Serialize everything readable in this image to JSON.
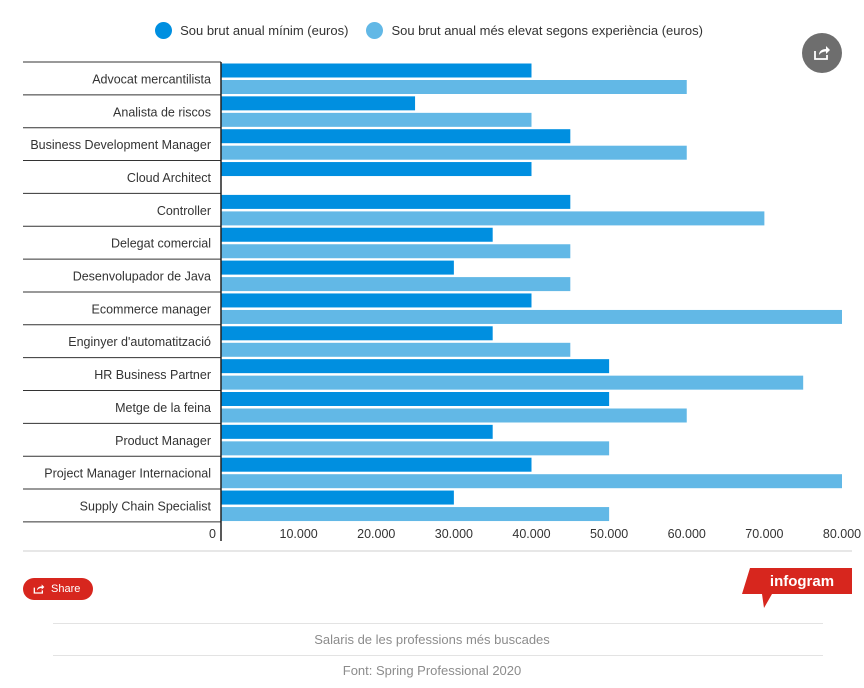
{
  "legend": {
    "min_label": "Sou brut anual mínim (euros)",
    "max_label": "Sou brut anual més elevat segons experiència (euros)"
  },
  "colors": {
    "min": "#008fe0",
    "max": "#62b8e6",
    "axis": "#222222",
    "grid": "#cfcfcf",
    "brand": "#d7261e"
  },
  "chart_data": {
    "type": "bar",
    "orientation": "horizontal",
    "categories": [
      "Advocat mercantilista",
      "Analista de riscos",
      "Business Development Manager",
      "Cloud Architect",
      "Controller",
      "Delegat comercial",
      "Desenvolupador de Java",
      "Ecommerce manager",
      "Enginyer d'automatització",
      "HR Business Partner",
      "Metge de la feina",
      "Product Manager",
      "Project Manager Internacional",
      "Supply Chain Specialist"
    ],
    "series": [
      {
        "name": "Sou brut anual mínim (euros)",
        "values": [
          40000,
          25000,
          45000,
          40000,
          45000,
          35000,
          30000,
          40000,
          35000,
          50000,
          50000,
          35000,
          40000,
          30000
        ]
      },
      {
        "name": "Sou brut anual més elevat segons experiència (euros)",
        "values": [
          60000,
          40000,
          60000,
          null,
          70000,
          45000,
          45000,
          80000,
          45000,
          75000,
          60000,
          50000,
          80000,
          50000
        ]
      }
    ],
    "x_ticks": [
      "0",
      "10.000",
      "20.000",
      "30.000",
      "40.000",
      "50.000",
      "60.000",
      "70.000",
      "80.000"
    ],
    "xlim": [
      0,
      80000
    ],
    "legend_position": "top"
  },
  "share_label": "Share",
  "brand_label": "infogram",
  "footer": {
    "title": "Salaris de les professions més buscades",
    "source": "Font: Spring Professional 2020"
  }
}
